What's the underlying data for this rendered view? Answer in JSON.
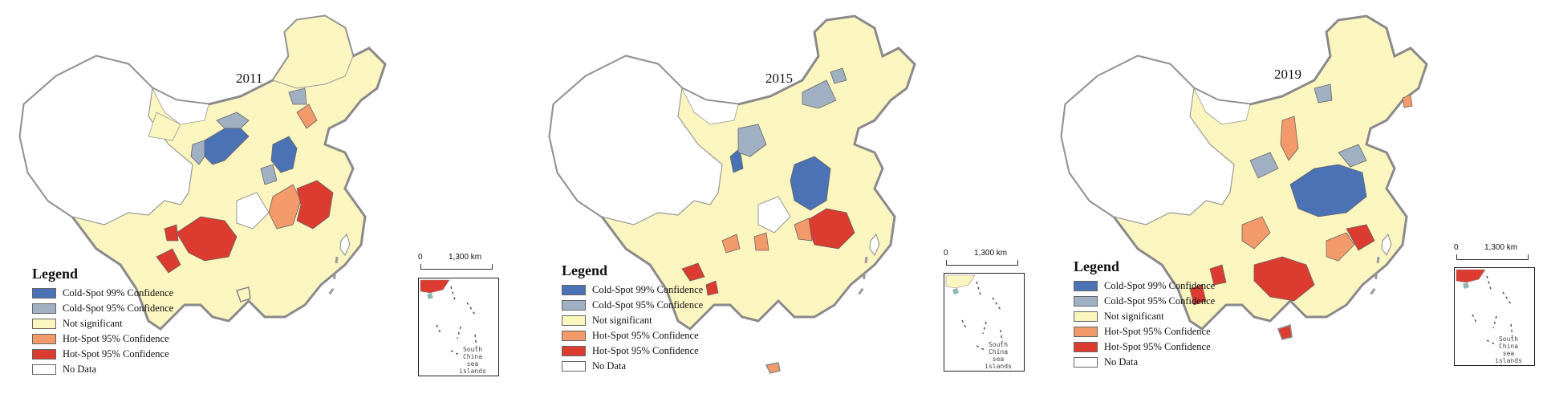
{
  "colors": {
    "cold99": "#4a72b5",
    "cold95": "#9fb0c2",
    "notsig": "#fbf5c0",
    "hot95orange": "#f29a6a",
    "hot95red": "#dc3b2f",
    "nodata": "#ffffff",
    "border": "#8a8a8a"
  },
  "legend": {
    "title": "Legend",
    "items": [
      {
        "label": "Cold-Spot 99% Confidence",
        "color": "#4a72b5"
      },
      {
        "label": "Cold-Spot 95% Confidence",
        "color": "#9fb0c2"
      },
      {
        "label": "Not significant",
        "color": "#fbf5c0"
      },
      {
        "label": "Hot-Spot 95% Confidence",
        "color": "#f29a6a"
      },
      {
        "label": "Hot-Spot 95% Confidence",
        "color": "#dc3b2f"
      },
      {
        "label": "No Data",
        "color": "#ffffff"
      }
    ]
  },
  "scale": {
    "start": "0",
    "end": "1,300 km"
  },
  "inset_label": [
    "South",
    "China",
    "sea islands"
  ],
  "panels": [
    {
      "year": "2011"
    },
    {
      "year": "2015"
    },
    {
      "year": "2019"
    }
  ]
}
